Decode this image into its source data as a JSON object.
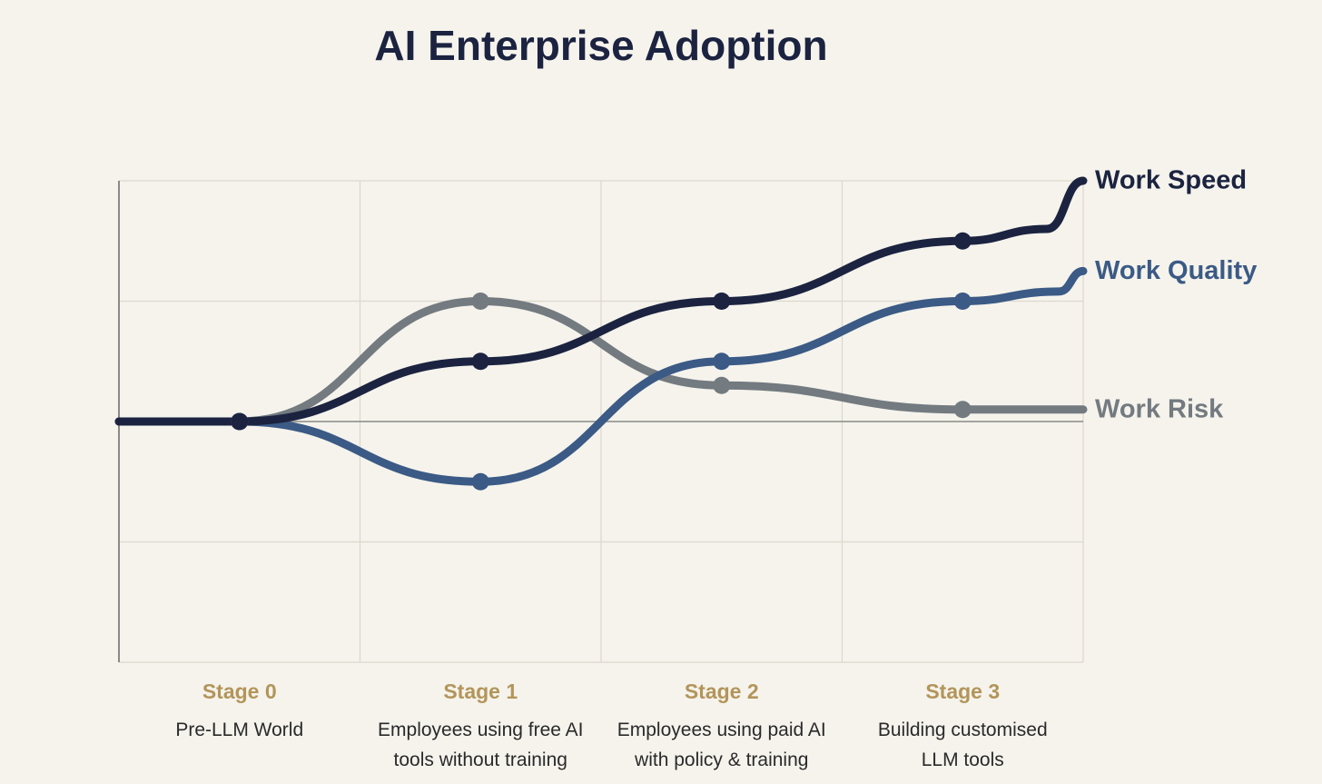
{
  "colors": {
    "background": "#f5f3ec",
    "grid": "#dcd8cc",
    "axis": "#8a8a86",
    "baseline": "#8a8a86",
    "title": "#1b2340",
    "stage_name": "#b3955a",
    "stage_desc": "#2a2a2a"
  },
  "chart_data": {
    "type": "line",
    "title": "AI Enterprise Adoption",
    "xlabel": "",
    "ylabel": "",
    "grid": true,
    "stages": [
      {
        "name": "Stage 0",
        "description": [
          "Pre-LLM World"
        ]
      },
      {
        "name": "Stage 1",
        "description": [
          "Employees using free AI",
          "tools without training"
        ]
      },
      {
        "name": "Stage 2",
        "description": [
          "Employees using paid AI",
          "with policy & training"
        ]
      },
      {
        "name": "Stage 3",
        "description": [
          "Building customised",
          "LLM tools"
        ]
      }
    ],
    "x_range": [
      -0.5,
      3.5
    ],
    "y_range": [
      -2,
      2
    ],
    "series": [
      {
        "name": "Work Risk",
        "color": "#737a80",
        "points": [
          [
            -0.5,
            0
          ],
          [
            0,
            0
          ],
          [
            1,
            1
          ],
          [
            2,
            0.3
          ],
          [
            3,
            0.1
          ],
          [
            3.5,
            0.1
          ]
        ],
        "markers": [
          0,
          1,
          2,
          3
        ]
      },
      {
        "name": "Work Quality",
        "color": "#3b5a85",
        "points": [
          [
            -0.5,
            0
          ],
          [
            0,
            0
          ],
          [
            1,
            -0.5
          ],
          [
            2,
            0.5
          ],
          [
            3,
            1
          ],
          [
            3.4,
            1.08
          ],
          [
            3.5,
            1.25
          ]
        ],
        "markers": [
          0,
          1,
          2,
          3
        ]
      },
      {
        "name": "Work Speed",
        "color": "#1b2340",
        "points": [
          [
            -0.5,
            0
          ],
          [
            0,
            0
          ],
          [
            1,
            0.5
          ],
          [
            2,
            1
          ],
          [
            3,
            1.5
          ],
          [
            3.35,
            1.6
          ],
          [
            3.5,
            2
          ]
        ],
        "markers": [
          0,
          1,
          2,
          3
        ]
      }
    ]
  }
}
